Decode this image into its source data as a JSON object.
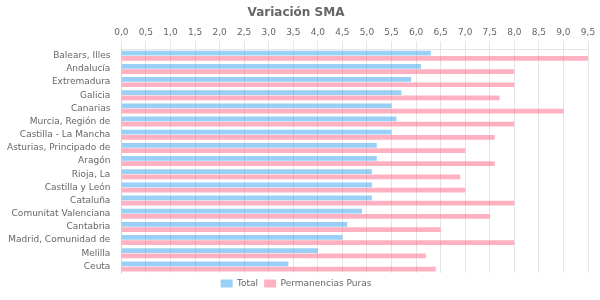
{
  "chart_data": {
    "type": "bar",
    "orientation": "horizontal",
    "title": "Variación SMA",
    "categories": [
      "Balears, Illes",
      "Andalucía",
      "Extremadura",
      "Galicia",
      "Canarias",
      "Murcia, Región de",
      "Castilla - La Mancha",
      "Asturias, Principado de",
      "Aragón",
      "Rioja, La",
      "Castilla y León",
      "Cataluña",
      "Comunitat Valenciana",
      "Cantabria",
      "Madrid, Comunidad de",
      "Melilla",
      "Ceuta"
    ],
    "series": [
      {
        "name": "Total",
        "values": [
          6.3,
          6.1,
          5.9,
          5.7,
          5.5,
          5.6,
          5.5,
          5.2,
          5.2,
          5.1,
          5.1,
          5.1,
          4.9,
          4.6,
          4.5,
          4.0,
          3.4
        ]
      },
      {
        "name": "Permanencias Puras",
        "values": [
          9.5,
          8.0,
          8.0,
          7.7,
          9.0,
          8.0,
          7.6,
          7.0,
          7.6,
          6.9,
          7.0,
          8.0,
          7.5,
          6.5,
          8.0,
          6.2,
          6.4
        ]
      }
    ],
    "xlim": [
      0,
      9.5
    ],
    "xticks": [
      {
        "value": 0.0,
        "label": "0,0"
      },
      {
        "value": 0.5,
        "label": "0,5"
      },
      {
        "value": 1.0,
        "label": "1,0"
      },
      {
        "value": 1.5,
        "label": "1,5"
      },
      {
        "value": 2.0,
        "label": "2,0"
      },
      {
        "value": 2.5,
        "label": "2,5"
      },
      {
        "value": 3.0,
        "label": "3,0"
      },
      {
        "value": 3.5,
        "label": "3,5"
      },
      {
        "value": 4.0,
        "label": "4,0"
      },
      {
        "value": 4.5,
        "label": "4,5"
      },
      {
        "value": 5.0,
        "label": "5,0"
      },
      {
        "value": 5.5,
        "label": "5,5"
      },
      {
        "value": 6.0,
        "label": "6,0"
      },
      {
        "value": 6.5,
        "label": "6,5"
      },
      {
        "value": 7.0,
        "label": "7,0"
      },
      {
        "value": 7.5,
        "label": "7,5"
      },
      {
        "value": 8.0,
        "label": "8,0"
      },
      {
        "value": 8.5,
        "label": "8,5"
      },
      {
        "value": 9.0,
        "label": "9,0"
      },
      {
        "value": 9.5,
        "label": "9,5"
      }
    ],
    "grid": true,
    "legend": "bottom"
  }
}
